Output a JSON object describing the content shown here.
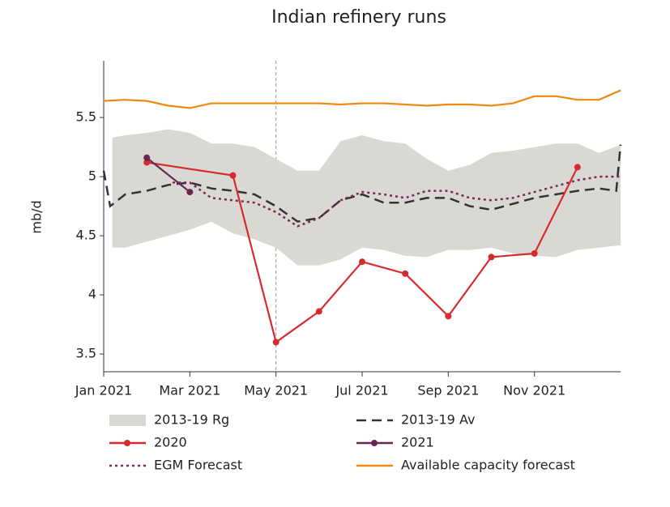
{
  "chart_data": {
    "type": "line",
    "title": "Indian refinery runs",
    "y_label": "mb/d",
    "xlim": [
      0,
      12
    ],
    "ylim": [
      3.35,
      5.98
    ],
    "xticks": [
      {
        "value": 0,
        "label": "Jan 2021"
      },
      {
        "value": 2,
        "label": "Mar 2021"
      },
      {
        "value": 4,
        "label": "May 2021"
      },
      {
        "value": 6,
        "label": "Jul 2021"
      },
      {
        "value": 8,
        "label": "Sep 2021"
      },
      {
        "value": 10,
        "label": "Nov 2021"
      }
    ],
    "yticks": [
      3.5,
      4,
      4.5,
      5,
      5.5
    ],
    "grid": false,
    "vline": 4,
    "series": [
      {
        "name": "2013-19 Rg",
        "style": "band",
        "color": "#d9d8d3",
        "x": [
          0.2,
          0.5,
          1,
          1.5,
          2,
          2.5,
          3,
          3.5,
          4,
          4.5,
          5,
          5.5,
          6,
          6.5,
          7,
          7.5,
          8,
          8.5,
          9,
          9.5,
          10,
          10.5,
          11,
          11.5,
          12
        ],
        "high": [
          5.33,
          5.35,
          5.37,
          5.4,
          5.37,
          5.28,
          5.28,
          5.25,
          5.15,
          5.05,
          5.05,
          5.3,
          5.35,
          5.3,
          5.28,
          5.15,
          5.05,
          5.1,
          5.2,
          5.22,
          5.25,
          5.28,
          5.28,
          5.2,
          5.27
        ],
        "low": [
          4.4,
          4.4,
          4.45,
          4.5,
          4.55,
          4.62,
          4.52,
          4.47,
          4.4,
          4.25,
          4.25,
          4.3,
          4.4,
          4.38,
          4.33,
          4.32,
          4.38,
          4.38,
          4.4,
          4.35,
          4.33,
          4.32,
          4.38,
          4.4,
          4.42
        ]
      },
      {
        "name": "2013-19 Av",
        "style": "dashed",
        "color": "#333333",
        "x": [
          0,
          0.15,
          0.5,
          1,
          1.5,
          2,
          2.5,
          3,
          3.5,
          4,
          4.5,
          5,
          5.5,
          6,
          6.5,
          7,
          7.5,
          8,
          8.5,
          9,
          9.5,
          10,
          10.5,
          11,
          11.5,
          11.9,
          12
        ],
        "values": [
          5.05,
          4.75,
          4.85,
          4.88,
          4.93,
          4.95,
          4.9,
          4.88,
          4.85,
          4.75,
          4.62,
          4.65,
          4.8,
          4.85,
          4.78,
          4.78,
          4.82,
          4.82,
          4.75,
          4.72,
          4.77,
          4.82,
          4.85,
          4.88,
          4.9,
          4.88,
          5.27
        ]
      },
      {
        "name": "2020",
        "style": "solid",
        "markers": true,
        "color": "#d62a2e",
        "x": [
          1,
          3,
          4,
          5,
          6,
          7,
          8,
          9,
          10,
          11
        ],
        "values": [
          5.12,
          5.01,
          3.6,
          3.86,
          4.28,
          4.18,
          3.82,
          4.32,
          4.35,
          5.08
        ]
      },
      {
        "name": "2021",
        "style": "solid",
        "markers": true,
        "color": "#6b2553",
        "x": [
          1,
          2
        ],
        "values": [
          5.16,
          4.87
        ]
      },
      {
        "name": "EGM Forecast",
        "style": "dotted",
        "color": "#7a2a5a",
        "x": [
          1.6,
          2,
          2.5,
          3,
          3.5,
          4,
          4.5,
          5,
          5.5,
          6,
          6.5,
          7,
          7.5,
          8,
          8.5,
          9,
          9.5,
          10,
          10.5,
          11,
          11.5,
          12
        ],
        "values": [
          4.95,
          4.95,
          4.82,
          4.8,
          4.78,
          4.7,
          4.58,
          4.65,
          4.8,
          4.87,
          4.85,
          4.82,
          4.88,
          4.88,
          4.82,
          4.8,
          4.82,
          4.87,
          4.92,
          4.97,
          5.0,
          5.0
        ]
      },
      {
        "name": "Available capacity forecast",
        "style": "solid",
        "color": "#f0870f",
        "x": [
          0,
          0.5,
          1,
          1.5,
          2,
          2.5,
          3,
          3.5,
          4,
          4.5,
          5,
          5.5,
          6,
          6.5,
          7,
          7.5,
          8,
          8.5,
          9,
          9.5,
          10,
          10.5,
          11,
          11.5,
          12
        ],
        "values": [
          5.64,
          5.65,
          5.64,
          5.6,
          5.58,
          5.62,
          5.62,
          5.62,
          5.62,
          5.62,
          5.62,
          5.61,
          5.62,
          5.62,
          5.61,
          5.6,
          5.61,
          5.61,
          5.6,
          5.62,
          5.68,
          5.68,
          5.65,
          5.65,
          5.73
        ]
      }
    ]
  }
}
